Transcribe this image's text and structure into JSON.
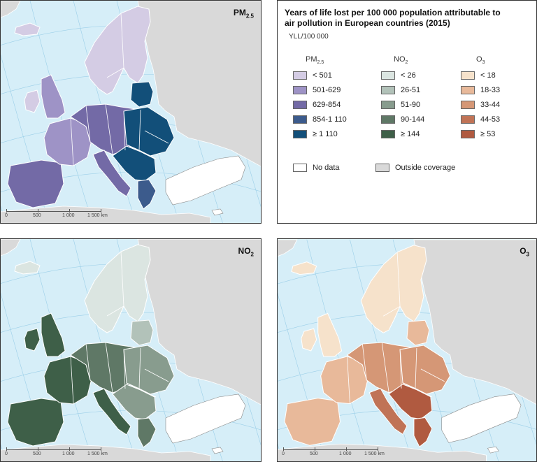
{
  "legend": {
    "title": "Years of life lost per 100 000 population attributable to air pollution in European countries (2015)",
    "unit": "YLL/100 000",
    "columns": [
      {
        "head_main": "PM",
        "head_sub": "2.5",
        "items": [
          {
            "label": "< 501",
            "color": "#d4cce4"
          },
          {
            "label": "501-629",
            "color": "#9e93c6"
          },
          {
            "label": "629-854",
            "color": "#736aa6"
          },
          {
            "label": "854-1 110",
            "color": "#3c5b8c"
          },
          {
            "label": "≥ 1 110",
            "color": "#124f79"
          }
        ]
      },
      {
        "head_main": "NO",
        "head_sub": "2",
        "items": [
          {
            "label": "< 26",
            "color": "#dbe5e1"
          },
          {
            "label": "26-51",
            "color": "#b2c2b9"
          },
          {
            "label": "51-90",
            "color": "#889c8e"
          },
          {
            "label": "90-144",
            "color": "#5f7866"
          },
          {
            "label": "≥ 144",
            "color": "#3e5f48"
          }
        ]
      },
      {
        "head_main": "O",
        "head_sub": "3",
        "items": [
          {
            "label": "< 18",
            "color": "#f6e2cb"
          },
          {
            "label": "18-33",
            "color": "#e8b99a"
          },
          {
            "label": "33-44",
            "color": "#d59776"
          },
          {
            "label": "44-53",
            "color": "#c07356"
          },
          {
            "label": "≥ 53",
            "color": "#b05a40"
          }
        ]
      }
    ],
    "no_data": {
      "label": "No data",
      "color": "#ffffff"
    },
    "outside": {
      "label": "Outside coverage",
      "color": "#d9d9d9"
    }
  },
  "maps": {
    "pm25": {
      "title_main": "PM",
      "title_sub": "2.5"
    },
    "no2": {
      "title_main": "NO",
      "title_sub": "2"
    },
    "o3": {
      "title_main": "O",
      "title_sub": "3"
    }
  },
  "scale": {
    "labels": [
      "0",
      "500",
      "1 000",
      "1 500 km"
    ]
  },
  "colors": {
    "sea": "#d6eef8",
    "outside": "#d9d9d9",
    "no_data": "#ffffff",
    "border": "#ffffff",
    "graticule": "#9ccfe8"
  },
  "map_fills": {
    "pm25": {
      "nordic": "#d4cce4",
      "britain": "#9e93c6",
      "iberia": "#736aa6",
      "france": "#9e93c6",
      "central": "#736aa6",
      "italy": "#736aa6",
      "east": "#124f79",
      "baltic": "#124f79",
      "balkans": "#124f79",
      "greece": "#3c5b8c",
      "ireland": "#d4cce4",
      "iceland": "#d4cce4"
    },
    "no2": {
      "nordic": "#dbe5e1",
      "britain": "#3e5f48",
      "iberia": "#3e5f48",
      "france": "#3e5f48",
      "central": "#5f7866",
      "italy": "#3e5f48",
      "east": "#889c8e",
      "baltic": "#b2c2b9",
      "balkans": "#889c8e",
      "greece": "#5f7866",
      "ireland": "#3e5f48",
      "iceland": "#dbe5e1"
    },
    "o3": {
      "nordic": "#f6e2cb",
      "britain": "#f6e2cb",
      "iberia": "#e8b99a",
      "france": "#e8b99a",
      "central": "#d59776",
      "italy": "#c07356",
      "east": "#d59776",
      "baltic": "#e8b99a",
      "balkans": "#b05a40",
      "greece": "#b05a40",
      "ireland": "#f6e2cb",
      "iceland": "#f6e2cb"
    }
  }
}
